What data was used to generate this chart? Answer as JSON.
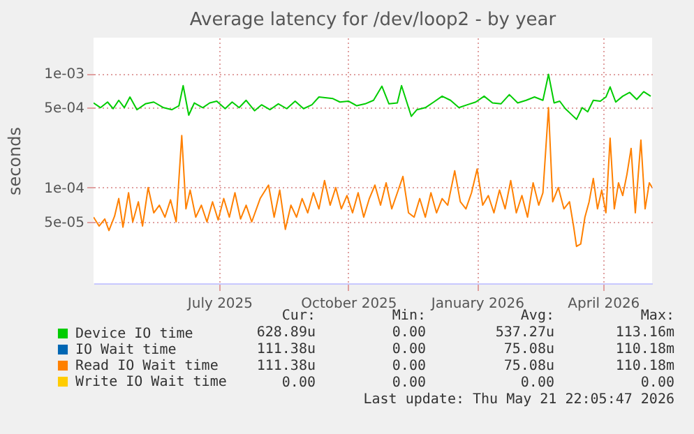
{
  "chart_data": {
    "type": "line",
    "title": "Average latency for /dev/loop2 - by year",
    "ylabel": "seconds",
    "log": "y",
    "grid": true,
    "legend": "bottom left",
    "xlim": [
      "2025-04-17",
      "2026-05-21"
    ],
    "xticks": [
      {
        "value": "2025-07-16",
        "label": "July 2025"
      },
      {
        "value": "2025-10-16",
        "label": "October 2025"
      },
      {
        "value": "2026-01-16",
        "label": "January 2026"
      },
      {
        "value": "2026-04-16",
        "label": "April 2026"
      }
    ],
    "ylim": [
      1.45e-05,
      0.00205
    ],
    "yticks": [
      {
        "value": 5e-05,
        "label": "5e-05"
      },
      {
        "value": 0.0001,
        "label": "1e-04"
      },
      {
        "value": 0.0005,
        "label": "5e-04"
      },
      {
        "value": 0.001,
        "label": "1e-03"
      }
    ],
    "series": [
      {
        "name": "Device IO time",
        "color": "#00cc00",
        "x": [
          "2025-04-17",
          "2025-04-22",
          "2025-04-27",
          "2025-05-01",
          "2025-05-05",
          "2025-05-09",
          "2025-05-13",
          "2025-05-18",
          "2025-05-24",
          "2025-05-30",
          "2025-06-06",
          "2025-06-12",
          "2025-06-17",
          "2025-06-20",
          "2025-06-24",
          "2025-06-28",
          "2025-07-04",
          "2025-07-09",
          "2025-07-14",
          "2025-07-20",
          "2025-07-25",
          "2025-07-30",
          "2025-08-04",
          "2025-08-10",
          "2025-08-15",
          "2025-08-21",
          "2025-08-27",
          "2025-09-02",
          "2025-09-08",
          "2025-09-14",
          "2025-09-20",
          "2025-09-25",
          "2025-10-05",
          "2025-10-10",
          "2025-10-16",
          "2025-10-22",
          "2025-10-28",
          "2025-11-03",
          "2025-11-09",
          "2025-11-14",
          "2025-11-20",
          "2025-11-23",
          "2025-11-30",
          "2025-12-04",
          "2025-12-10",
          "2025-12-16",
          "2025-12-22",
          "2025-12-28",
          "2026-01-03",
          "2026-01-09",
          "2026-01-15",
          "2026-01-21",
          "2026-01-27",
          "2026-02-02",
          "2026-02-08",
          "2026-02-14",
          "2026-02-20",
          "2026-02-26",
          "2026-03-04",
          "2026-03-08",
          "2026-03-12",
          "2026-03-16",
          "2026-03-20",
          "2026-03-24",
          "2026-03-28",
          "2026-04-01",
          "2026-04-05",
          "2026-04-09",
          "2026-04-14",
          "2026-04-18",
          "2026-04-21",
          "2026-04-25",
          "2026-04-30",
          "2026-05-05",
          "2026-05-10",
          "2026-05-15",
          "2026-05-20"
        ],
        "values": [
          0.00055,
          0.0005,
          0.00056,
          0.00049,
          0.00058,
          0.0005,
          0.00062,
          0.00048,
          0.00054,
          0.00056,
          0.0005,
          0.00048,
          0.00052,
          0.00078,
          0.00043,
          0.00055,
          0.0005,
          0.00055,
          0.00057,
          0.00049,
          0.00056,
          0.0005,
          0.00058,
          0.00047,
          0.00053,
          0.00048,
          0.00054,
          0.00049,
          0.00057,
          0.00049,
          0.00053,
          0.00062,
          0.0006,
          0.00056,
          0.00057,
          0.00052,
          0.00054,
          0.00058,
          0.00077,
          0.00054,
          0.00055,
          0.00078,
          0.00042,
          0.00048,
          0.0005,
          0.00056,
          0.00063,
          0.00058,
          0.0005,
          0.00053,
          0.00056,
          0.00063,
          0.00055,
          0.00054,
          0.00065,
          0.00055,
          0.00058,
          0.00062,
          0.00058,
          0.00098,
          0.00055,
          0.00057,
          0.00049,
          0.00044,
          0.000395,
          0.0005,
          0.00046,
          0.00058,
          0.00057,
          0.00062,
          0.00076,
          0.00056,
          0.00063,
          0.00068,
          0.00059,
          0.00069,
          0.00063
        ]
      },
      {
        "name": "IO Wait time",
        "color": "#0066b3",
        "values": [
          null
        ]
      },
      {
        "name": "Read IO Wait time",
        "color": "#ff8000",
        "x": [
          "2025-04-17",
          "2025-04-21",
          "2025-04-25",
          "2025-04-28",
          "2025-05-02",
          "2025-05-05",
          "2025-05-08",
          "2025-05-12",
          "2025-05-15",
          "2025-05-19",
          "2025-05-22",
          "2025-05-26",
          "2025-05-30",
          "2025-06-03",
          "2025-06-07",
          "2025-06-11",
          "2025-06-15",
          "2025-06-19",
          "2025-06-22",
          "2025-06-25",
          "2025-06-29",
          "2025-07-03",
          "2025-07-07",
          "2025-07-11",
          "2025-07-15",
          "2025-07-19",
          "2025-07-23",
          "2025-07-27",
          "2025-07-31",
          "2025-08-04",
          "2025-08-08",
          "2025-08-14",
          "2025-08-20",
          "2025-08-24",
          "2025-08-28",
          "2025-09-01",
          "2025-09-05",
          "2025-09-09",
          "2025-09-13",
          "2025-09-17",
          "2025-09-21",
          "2025-09-25",
          "2025-09-29",
          "2025-10-03",
          "2025-10-07",
          "2025-10-11",
          "2025-10-15",
          "2025-10-19",
          "2025-10-23",
          "2025-10-27",
          "2025-10-31",
          "2025-11-04",
          "2025-11-08",
          "2025-11-12",
          "2025-11-16",
          "2025-11-20",
          "2025-11-24",
          "2025-11-28",
          "2025-12-02",
          "2025-12-06",
          "2025-12-10",
          "2025-12-14",
          "2025-12-18",
          "2025-12-22",
          "2025-12-26",
          "2025-12-31",
          "2026-01-04",
          "2026-01-08",
          "2026-01-12",
          "2026-01-16",
          "2026-01-20",
          "2026-01-24",
          "2026-01-28",
          "2026-02-01",
          "2026-02-05",
          "2026-02-09",
          "2026-02-13",
          "2026-02-17",
          "2026-02-21",
          "2026-02-25",
          "2026-03-01",
          "2026-03-04",
          "2026-03-08",
          "2026-03-11",
          "2026-03-15",
          "2026-03-19",
          "2026-03-23",
          "2026-03-26",
          "2026-03-28",
          "2026-03-31",
          "2026-04-03",
          "2026-04-06",
          "2026-04-09",
          "2026-04-12",
          "2026-04-15",
          "2026-04-18",
          "2026-04-21",
          "2026-04-24",
          "2026-04-27",
          "2026-04-30",
          "2026-05-03",
          "2026-05-06",
          "2026-05-09",
          "2026-05-13",
          "2026-05-16",
          "2026-05-19",
          "2026-05-21"
        ],
        "values": [
          5.5e-05,
          4.6e-05,
          5.3e-05,
          4.2e-05,
          5.6e-05,
          8e-05,
          4.5e-05,
          9e-05,
          5e-05,
          7.5e-05,
          4.6e-05,
          0.0001,
          6e-05,
          7e-05,
          5.5e-05,
          7.8e-05,
          5e-05,
          0.000285,
          6.5e-05,
          9.5e-05,
          5.5e-05,
          7e-05,
          5e-05,
          7.5e-05,
          5.2e-05,
          8e-05,
          5.5e-05,
          9e-05,
          5.3e-05,
          7e-05,
          5e-05,
          8e-05,
          0.000105,
          5.5e-05,
          9.5e-05,
          4.3e-05,
          7e-05,
          5.5e-05,
          8e-05,
          6e-05,
          9e-05,
          6.5e-05,
          0.000115,
          7e-05,
          0.0001,
          6.5e-05,
          8.5e-05,
          6e-05,
          9e-05,
          5.5e-05,
          8e-05,
          0.000105,
          7e-05,
          0.00011,
          6.5e-05,
          9e-05,
          0.000125,
          6e-05,
          5.5e-05,
          8e-05,
          5.5e-05,
          9e-05,
          6e-05,
          8e-05,
          7e-05,
          0.00014,
          7.5e-05,
          6.5e-05,
          9e-05,
          0.000145,
          7e-05,
          8.5e-05,
          6e-05,
          9.5e-05,
          6.5e-05,
          0.000115,
          6e-05,
          8.5e-05,
          5.5e-05,
          0.00011,
          7e-05,
          9e-05,
          0.0005,
          7.5e-05,
          0.0001,
          6.5e-05,
          7.5e-05,
          4.5e-05,
          3.05e-05,
          3.2e-05,
          5.5e-05,
          7.5e-05,
          0.00012,
          6.5e-05,
          9.5e-05,
          6e-05,
          0.00027,
          6.5e-05,
          0.00011,
          8.5e-05,
          0.00013,
          0.00022,
          6e-05,
          0.00026,
          6.5e-05,
          0.00011,
          0.0001
        ]
      },
      {
        "name": "Write IO Wait time",
        "color": "#ffcc00",
        "values": [
          null
        ]
      }
    ],
    "annotations": [
      "Cur:",
      "Min:",
      "Avg:",
      "Max:",
      "628.89u",
      "0.00",
      "537.27u",
      "113.16m",
      "111.38u",
      "0.00",
      "75.08u",
      "110.18m",
      "111.38u",
      "0.00",
      "75.08u",
      "110.18m",
      "0.00",
      "0.00",
      "0.00",
      "0.00",
      "Last update: Thu May 21 22:05:47 2026"
    ]
  }
}
